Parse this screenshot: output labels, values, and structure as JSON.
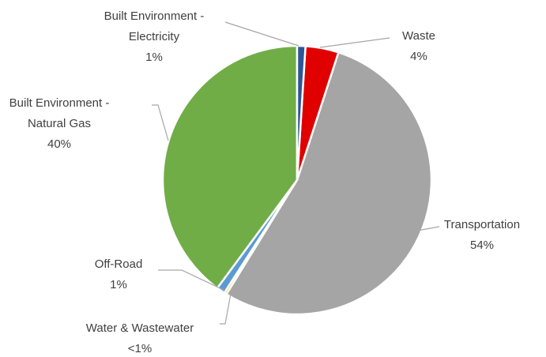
{
  "chart_data": {
    "type": "pie",
    "categories": [
      "Built Environment - Electricity",
      "Waste",
      "Transportation",
      "Water & Wastewater",
      "Off-Road",
      "Built Environment - Natural Gas"
    ],
    "values": [
      1,
      4,
      54,
      0.3,
      1,
      40
    ],
    "value_labels": [
      "1%",
      "4%",
      "54%",
      "<1%",
      "1%",
      "40%"
    ],
    "colors": [
      "#2f5597",
      "#e00000",
      "#a5a5a5",
      "#ffc000",
      "#5b9bd5",
      "#70ad47"
    ]
  }
}
